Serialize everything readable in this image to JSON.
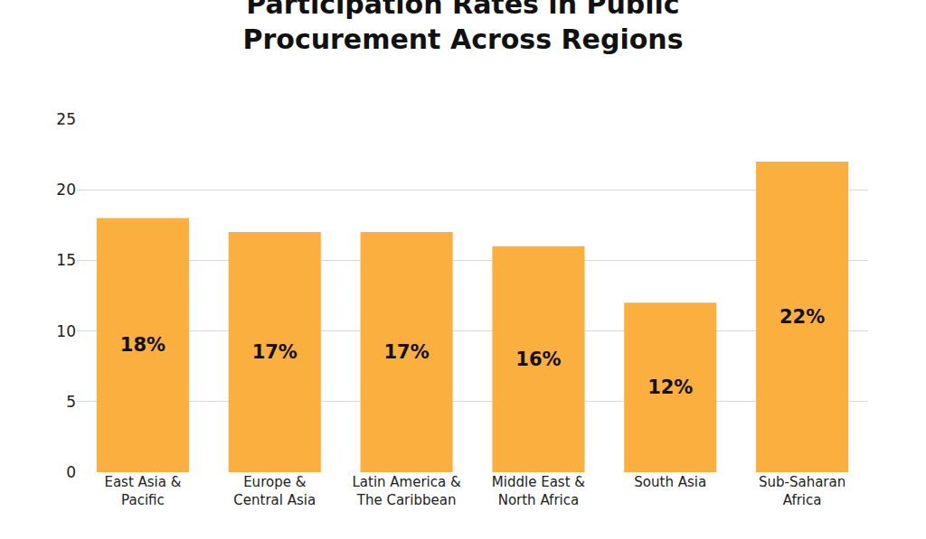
{
  "chart_data": {
    "type": "bar",
    "title": "Participation Rates in Public Procurement Across Regions",
    "categories": [
      "East Asia & Pacific",
      "Europe & Central Asia",
      "Latin America & The Caribbean",
      "Middle East & North Africa",
      "South Asia",
      "Sub-Saharan Africa"
    ],
    "values": [
      18,
      17,
      17,
      16,
      12,
      22
    ],
    "value_labels": [
      "18%",
      "17%",
      "17%",
      "16%",
      "12%",
      "22%"
    ],
    "data_labels": true,
    "color": "#fbaf3f",
    "ylim": [
      0,
      25
    ],
    "yticks": [
      0,
      5,
      10,
      15,
      20,
      25
    ],
    "grid": true
  }
}
